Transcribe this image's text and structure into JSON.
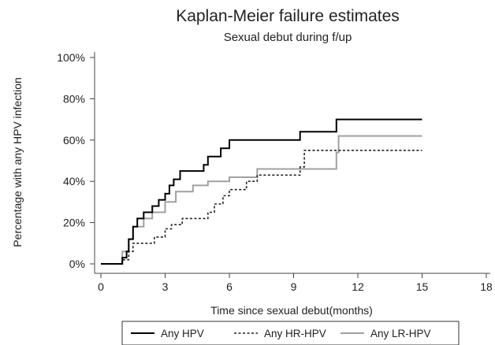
{
  "chart_data": {
    "type": "line",
    "step": true,
    "title": "Kaplan-Meier failure estimates",
    "subtitle": "Sexual debut during f/up",
    "xlabel": "Time since sexual debut(months)",
    "ylabel": "Percentage with any HPV infection",
    "xlim": [
      0,
      18
    ],
    "ylim": [
      0,
      1
    ],
    "x_ticks": [
      0,
      3,
      6,
      9,
      12,
      15,
      18
    ],
    "y_ticks": [
      0,
      0.2,
      0.4,
      0.6,
      0.8,
      1.0
    ],
    "y_tick_labels": [
      "0%",
      "20%",
      "40%",
      "60%",
      "80%",
      "100%"
    ],
    "grid": false,
    "legend_position": "bottom",
    "series": [
      {
        "name": "Any HPV",
        "color": "#000000",
        "dash": "solid",
        "points": [
          [
            0,
            0
          ],
          [
            1,
            0
          ],
          [
            1,
            0.03
          ],
          [
            1.2,
            0.06
          ],
          [
            1.3,
            0.12
          ],
          [
            1.5,
            0.18
          ],
          [
            1.7,
            0.22
          ],
          [
            2.0,
            0.25
          ],
          [
            2.4,
            0.28
          ],
          [
            2.7,
            0.31
          ],
          [
            3.0,
            0.34
          ],
          [
            3.2,
            0.38
          ],
          [
            3.4,
            0.41
          ],
          [
            3.7,
            0.45
          ],
          [
            4.8,
            0.48
          ],
          [
            5.0,
            0.52
          ],
          [
            5.6,
            0.56
          ],
          [
            6.0,
            0.6
          ],
          [
            9.3,
            0.64
          ],
          [
            11.0,
            0.7
          ],
          [
            15,
            0.7
          ]
        ]
      },
      {
        "name": "Any HR-HPV",
        "color": "#222222",
        "dash": "dotted",
        "points": [
          [
            0,
            0
          ],
          [
            1,
            0
          ],
          [
            1,
            0.02
          ],
          [
            1.3,
            0.06
          ],
          [
            1.5,
            0.1
          ],
          [
            2.5,
            0.13
          ],
          [
            3.0,
            0.17
          ],
          [
            3.3,
            0.19
          ],
          [
            3.8,
            0.22
          ],
          [
            5.0,
            0.25
          ],
          [
            5.3,
            0.29
          ],
          [
            5.7,
            0.33
          ],
          [
            6.0,
            0.36
          ],
          [
            6.8,
            0.4
          ],
          [
            7.3,
            0.43
          ],
          [
            9.3,
            0.47
          ],
          [
            9.5,
            0.55
          ],
          [
            15,
            0.55
          ]
        ]
      },
      {
        "name": "Any LR-HPV",
        "color": "#a0a0a0",
        "dash": "solid",
        "points": [
          [
            0,
            0
          ],
          [
            1,
            0
          ],
          [
            1,
            0.06
          ],
          [
            1.3,
            0.12
          ],
          [
            1.5,
            0.18
          ],
          [
            2.0,
            0.22
          ],
          [
            2.4,
            0.25
          ],
          [
            3.0,
            0.3
          ],
          [
            3.5,
            0.35
          ],
          [
            4.3,
            0.38
          ],
          [
            5.0,
            0.4
          ],
          [
            6.0,
            0.42
          ],
          [
            7.3,
            0.46
          ],
          [
            11.0,
            0.54
          ],
          [
            11.1,
            0.62
          ],
          [
            15,
            0.62
          ]
        ]
      }
    ]
  }
}
